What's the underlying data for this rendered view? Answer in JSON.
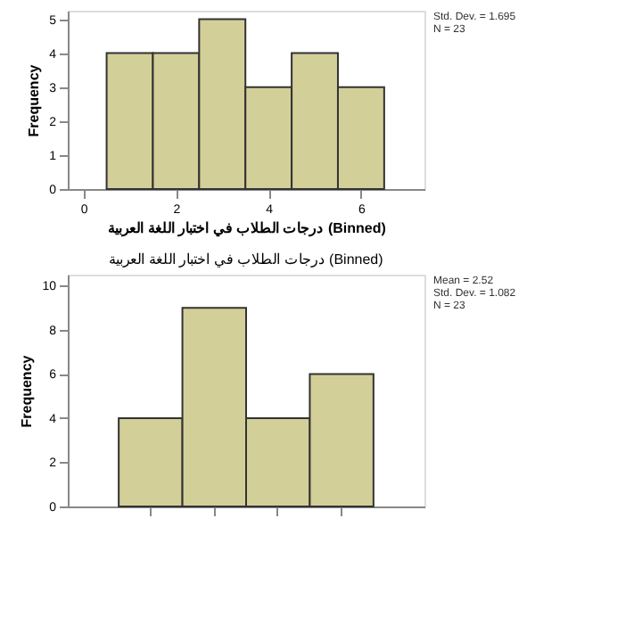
{
  "chart_data": [
    {
      "type": "histogram",
      "xlabel": "درجات الطلاب في اختبار اللغة العربية (Binned)",
      "ylabel": "Frequency",
      "bins": [
        0.5,
        1.5,
        2.5,
        3.5,
        4.5,
        5.5,
        6.5
      ],
      "values": [
        4,
        4,
        5,
        3,
        4,
        3
      ],
      "color": "#d3cf98",
      "xlim": [
        -0.34,
        7.37
      ],
      "xticks": [
        0,
        2,
        4,
        6
      ],
      "ylim": [
        0,
        5.25
      ],
      "yticks": [
        0,
        1,
        2,
        3,
        4,
        5
      ],
      "annotations": [
        "Std. Dev. = 1.695",
        "N = 23"
      ],
      "grid": false
    },
    {
      "type": "bar",
      "title": "درجات الطلاب في اختبار اللغة العربية (Binned)",
      "ylabel": "Frequency",
      "categories": [
        null,
        null,
        null,
        null
      ],
      "values": [
        4,
        9,
        4,
        6
      ],
      "color": "#d3cf98",
      "ylim": [
        0,
        10.5
      ],
      "yticks": [
        0,
        2,
        4,
        6,
        8,
        10
      ],
      "tick_labels": "y",
      "annotations": [
        "Mean = 2.52",
        "Std. Dev. = 1.082",
        "N = 23"
      ],
      "grid": false
    }
  ]
}
